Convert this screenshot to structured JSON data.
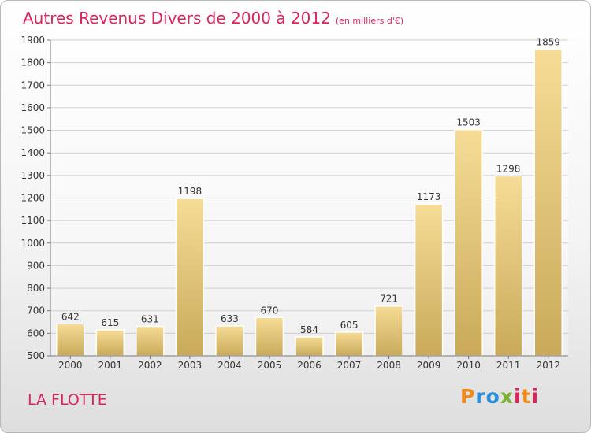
{
  "chart_data": {
    "type": "bar",
    "title": "Autres Revenus Divers de 2000 à 2012",
    "subtitle": "(en milliers d'€)",
    "categories": [
      "2000",
      "2001",
      "2002",
      "2003",
      "2004",
      "2005",
      "2006",
      "2007",
      "2008",
      "2009",
      "2010",
      "2011",
      "2012"
    ],
    "values": [
      642,
      615,
      631,
      1198,
      633,
      670,
      584,
      605,
      721,
      1173,
      1503,
      1298,
      1859
    ],
    "ylim": [
      500,
      1900
    ],
    "yticks": [
      500,
      600,
      700,
      800,
      900,
      1000,
      1100,
      1200,
      1300,
      1400,
      1500,
      1600,
      1700,
      1800,
      1900
    ],
    "grid": true,
    "bar_color": "#e6c878"
  },
  "location": "LA FLOTTE",
  "logo": {
    "letters": [
      "P",
      "r",
      "o",
      "x",
      "i",
      "t",
      "i"
    ]
  }
}
